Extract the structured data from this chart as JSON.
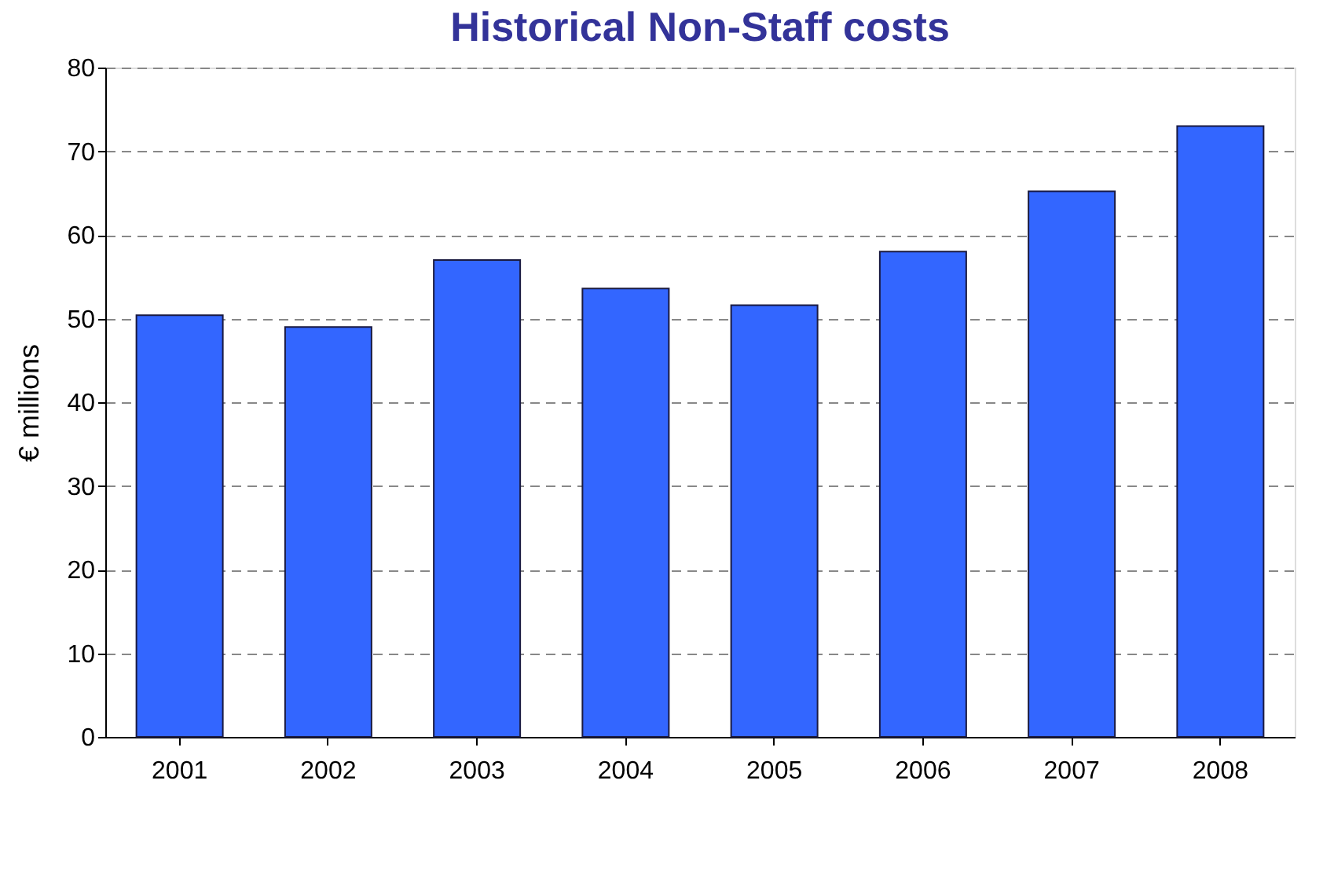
{
  "chart_data": {
    "type": "bar",
    "title": "Historical Non-Staff costs",
    "ylabel": "€ millions",
    "categories": [
      "2001",
      "2002",
      "2003",
      "2004",
      "2005",
      "2006",
      "2007",
      "2008"
    ],
    "values": [
      50.4,
      49,
      57,
      53.6,
      51.6,
      58,
      65.2,
      73
    ],
    "color": "#3366ff",
    "ylim": [
      0,
      80
    ],
    "yticks": [
      0,
      10,
      20,
      30,
      40,
      50,
      60,
      70,
      80
    ],
    "grid": "y"
  }
}
